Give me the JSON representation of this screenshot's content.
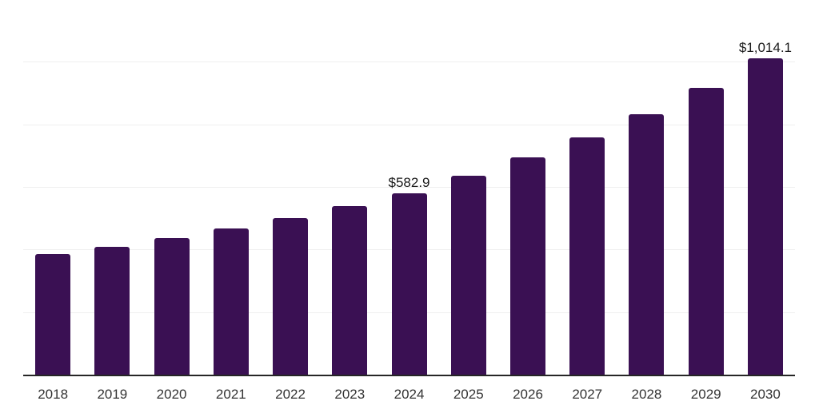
{
  "chart_data": {
    "type": "bar",
    "title": "",
    "xlabel": "",
    "ylabel": "",
    "categories": [
      "2018",
      "2019",
      "2020",
      "2021",
      "2022",
      "2023",
      "2024",
      "2025",
      "2026",
      "2027",
      "2028",
      "2029",
      "2030"
    ],
    "values": [
      388,
      411,
      439,
      471,
      503,
      541,
      582.9,
      638,
      697,
      761,
      835,
      919,
      1014.1
    ],
    "point_labels": [
      "",
      "",
      "",
      "",
      "",
      "",
      "$582.9",
      "",
      "",
      "",
      "",
      "",
      "$1,014.1"
    ],
    "ylim": [
      0,
      1200
    ],
    "gridline_step": 200,
    "grid": "horizontal-only",
    "y_tick_labels_visible": false,
    "legend": "none",
    "bar_color": "#3A1053"
  },
  "style": {
    "background": "#FFFFFF",
    "gridline_color": "#EFEFEF",
    "axis_line_color": "#262626",
    "tick_label_color": "#333333",
    "data_label_color": "#1A1A1A"
  }
}
